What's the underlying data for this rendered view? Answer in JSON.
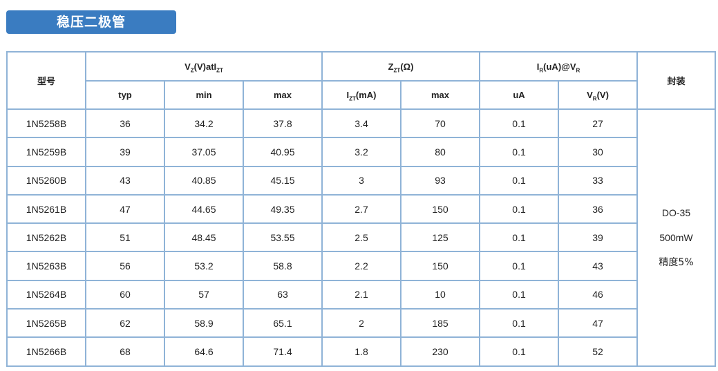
{
  "title": "稳压二极管",
  "headers": {
    "model": "型号",
    "vz_group": {
      "main": "V",
      "sub1": "Z",
      "mid": "(V)atI",
      "sub2": "ZT"
    },
    "zzt_group": {
      "main": "Z",
      "sub": "ZT",
      "tail": "(Ω)"
    },
    "ir_group": {
      "main": "I",
      "sub1": "R",
      "mid": "(uA)@V",
      "sub2": "R"
    },
    "package": "封装",
    "vz_typ": "typ",
    "vz_min": "min",
    "vz_max": "max",
    "izt": {
      "main": "I",
      "sub": "ZT",
      "tail": "(mA)"
    },
    "zzt_max": "max",
    "ir_ua": "uA",
    "vr": {
      "main": "V",
      "sub": "R",
      "tail": "(V)"
    }
  },
  "rows": [
    {
      "model": "1N5258B",
      "typ": "36",
      "min": "34.2",
      "max": "37.8",
      "izt": "3.4",
      "zmax": "70",
      "ua": "0.1",
      "vr": "27"
    },
    {
      "model": "1N5259B",
      "typ": "39",
      "min": "37.05",
      "max": "40.95",
      "izt": "3.2",
      "zmax": "80",
      "ua": "0.1",
      "vr": "30"
    },
    {
      "model": "1N5260B",
      "typ": "43",
      "min": "40.85",
      "max": "45.15",
      "izt": "3",
      "zmax": "93",
      "ua": "0.1",
      "vr": "33"
    },
    {
      "model": "1N5261B",
      "typ": "47",
      "min": "44.65",
      "max": "49.35",
      "izt": "2.7",
      "zmax": "150",
      "ua": "0.1",
      "vr": "36"
    },
    {
      "model": "1N5262B",
      "typ": "51",
      "min": "48.45",
      "max": "53.55",
      "izt": "2.5",
      "zmax": "125",
      "ua": "0.1",
      "vr": "39"
    },
    {
      "model": "1N5263B",
      "typ": "56",
      "min": "53.2",
      "max": "58.8",
      "izt": "2.2",
      "zmax": "150",
      "ua": "0.1",
      "vr": "43"
    },
    {
      "model": "1N5264B",
      "typ": "60",
      "min": "57",
      "max": "63",
      "izt": "2.1",
      "zmax": "10",
      "ua": "0.1",
      "vr": "46"
    },
    {
      "model": "1N5265B",
      "typ": "62",
      "min": "58.9",
      "max": "65.1",
      "izt": "2",
      "zmax": "185",
      "ua": "0.1",
      "vr": "47"
    },
    {
      "model": "1N5266B",
      "typ": "68",
      "min": "64.6",
      "max": "71.4",
      "izt": "1.8",
      "zmax": "230",
      "ua": "0.1",
      "vr": "52"
    }
  ],
  "package": {
    "type": "DO-35",
    "power": "500mW",
    "tolerance": "精度5%"
  },
  "colors": {
    "title_bg": "#3a7cc1",
    "border": "#8fb3d7"
  }
}
